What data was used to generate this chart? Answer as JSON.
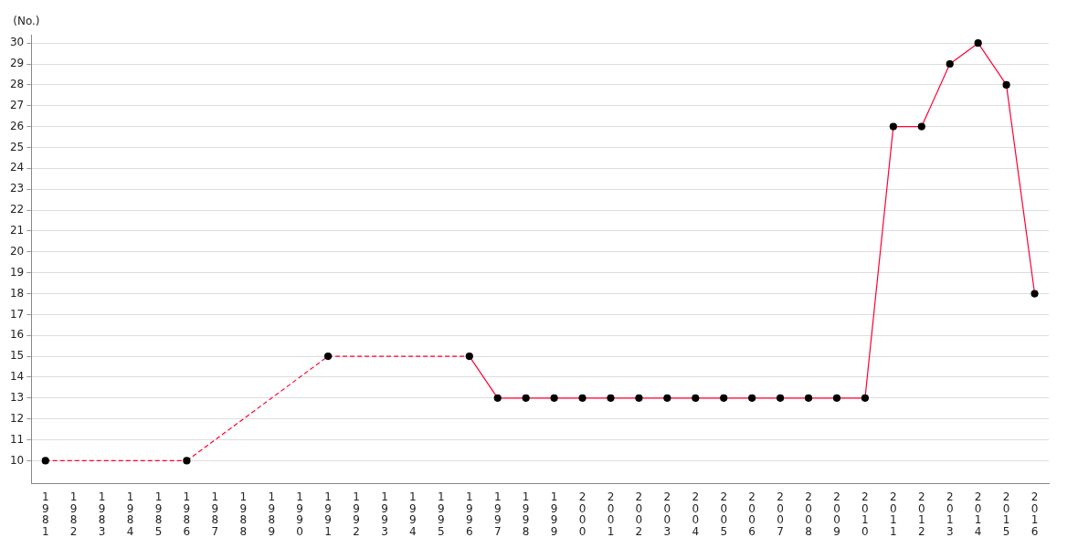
{
  "chart_data": {
    "type": "line",
    "ylabel": "(No.)",
    "categories": [
      "1981",
      "1982",
      "1983",
      "1984",
      "1985",
      "1986",
      "1987",
      "1988",
      "1989",
      "1990",
      "1991",
      "1992",
      "1993",
      "1994",
      "1995",
      "1996",
      "1997",
      "1998",
      "1999",
      "2000",
      "2001",
      "2002",
      "2003",
      "2004",
      "2005",
      "2006",
      "2007",
      "2008",
      "2009",
      "2010",
      "2011",
      "2012",
      "2013",
      "2014",
      "2015",
      "2016"
    ],
    "series": [
      {
        "color": "#ff0033",
        "values": [
          10,
          null,
          null,
          null,
          null,
          10,
          null,
          null,
          null,
          null,
          15,
          null,
          null,
          null,
          null,
          15,
          13,
          13,
          13,
          13,
          13,
          13,
          13,
          13,
          13,
          13,
          13,
          13,
          13,
          13,
          26,
          26,
          29,
          30,
          28,
          18
        ]
      }
    ],
    "ylim": [
      8.9,
      30.4
    ],
    "yticks": [
      10,
      11,
      12,
      13,
      14,
      15,
      16,
      17,
      18,
      19,
      20,
      21,
      22,
      23,
      24,
      25,
      26,
      27,
      28,
      29,
      30
    ],
    "grid": "y",
    "legend": false,
    "marker": "circle",
    "line_style": "solid"
  }
}
